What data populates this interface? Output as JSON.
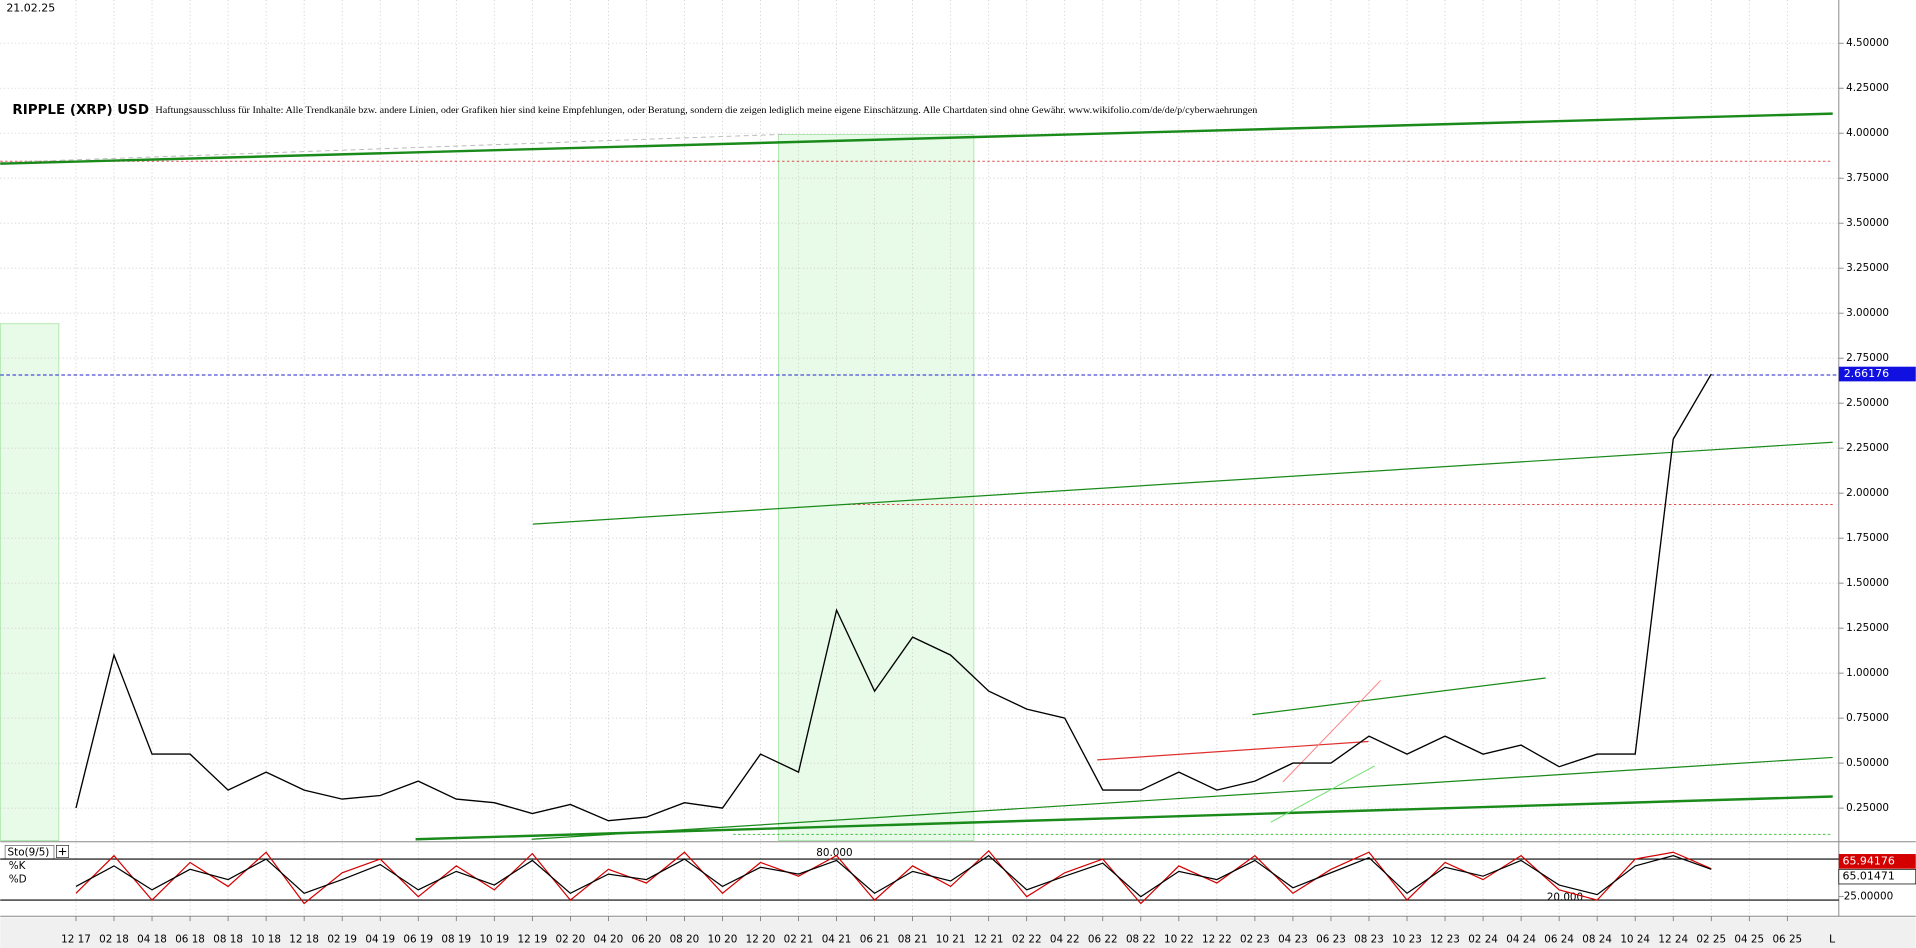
{
  "date": "21.02.25",
  "corner_label": "L",
  "chart_data": [
    {
      "type": "line",
      "title": "RIPPLE (XRP) USD",
      "subtitle": "Haftungsausschluss für Inhalte: Alle Trendkanäle bzw. andere Linien, oder Grafiken hier sind keine Empfehlungen, oder Beratung, sondern die zeigen lediglich meine eigene Einschätzung. Alle Chartdaten sind ohne Gewähr. www.wikifolio.com/de/de/p/cyberwaehrungen",
      "categories": [
        "12 17",
        "02 18",
        "04 18",
        "06 18",
        "08 18",
        "10 18",
        "12 18",
        "02 19",
        "04 19",
        "06 19",
        "08 19",
        "10 19",
        "12 19",
        "02 20",
        "04 20",
        "06 20",
        "08 20",
        "10 20",
        "12 20",
        "02 21",
        "04 21",
        "06 21",
        "08 21",
        "10 21",
        "12 21",
        "02 22",
        "04 22",
        "06 22",
        "08 22",
        "10 22",
        "12 22",
        "02 23",
        "04 23",
        "06 23",
        "08 23",
        "10 23",
        "12 23",
        "02 24",
        "04 24",
        "06 24",
        "08 24",
        "10 24",
        "12 24",
        "02 25",
        "04 25",
        "06 25"
      ],
      "series": [
        {
          "color": "#000000",
          "values": [
            0.25,
            1.1,
            0.55,
            0.55,
            0.35,
            0.45,
            0.35,
            0.3,
            0.32,
            0.4,
            0.3,
            0.28,
            0.22,
            0.27,
            0.18,
            0.2,
            0.28,
            0.25,
            0.55,
            0.45,
            1.35,
            0.9,
            1.2,
            1.1,
            0.9,
            0.8,
            0.75,
            0.35,
            0.35,
            0.45,
            0.35,
            0.4,
            0.5,
            0.5,
            0.65,
            0.55,
            0.65,
            0.55,
            0.6,
            0.48,
            0.55,
            0.55,
            2.3,
            2.66176,
            null,
            null
          ]
        }
      ],
      "ylim": [
        0.07,
        4.74
      ],
      "yticks": [
        {
          "value": 0.25,
          "label": "0.25000"
        },
        {
          "value": 0.5,
          "label": "0.50000"
        },
        {
          "value": 0.75,
          "label": "0.75000"
        },
        {
          "value": 1.0,
          "label": "1.00000"
        },
        {
          "value": 1.25,
          "label": "1.25000"
        },
        {
          "value": 1.5,
          "label": "1.50000"
        },
        {
          "value": 1.75,
          "label": "1.75000"
        },
        {
          "value": 2.0,
          "label": "2.00000"
        },
        {
          "value": 2.25,
          "label": "2.25000"
        },
        {
          "value": 2.5,
          "label": "2.50000"
        },
        {
          "value": 2.75,
          "label": "2.75000"
        },
        {
          "value": 3.0,
          "label": "3.00000"
        },
        {
          "value": 3.25,
          "label": "3.25000"
        },
        {
          "value": 3.5,
          "label": "3.50000"
        },
        {
          "value": 3.75,
          "label": "3.75000"
        },
        {
          "value": 4.0,
          "label": "4.00000"
        },
        {
          "value": 4.25,
          "label": "4.25000"
        },
        {
          "value": 4.5,
          "label": "4.50000"
        }
      ],
      "grid": true
    },
    {
      "type": "stochastic",
      "title": "Sto(9/5)",
      "series": [
        {
          "name": "%K",
          "color": "#d40000",
          "values": [
            30,
            85,
            20,
            75,
            40,
            90,
            15,
            60,
            80,
            25,
            70,
            35,
            88,
            20,
            65,
            45,
            90,
            30,
            75,
            55,
            85,
            20,
            70,
            40,
            92,
            25,
            60,
            80,
            15,
            70,
            45,
            85,
            30,
            65,
            90,
            20,
            75,
            50,
            85,
            35,
            20,
            80,
            90,
            65.94176,
            null,
            null
          ]
        },
        {
          "name": "%D",
          "color": "#000000",
          "values": [
            40,
            70,
            35,
            65,
            50,
            80,
            30,
            50,
            72,
            35,
            62,
            42,
            78,
            30,
            58,
            50,
            80,
            40,
            68,
            58,
            78,
            30,
            62,
            48,
            85,
            35,
            55,
            74,
            25,
            62,
            50,
            78,
            38,
            60,
            82,
            30,
            68,
            55,
            78,
            42,
            28,
            70,
            85,
            65.01471,
            null,
            null
          ]
        }
      ],
      "ylim": [
        0,
        100
      ],
      "yticks": [
        {
          "value": 25,
          "label": "25.00000"
        }
      ],
      "levels": [
        {
          "value": 80,
          "label": "80.000"
        },
        {
          "value": 20,
          "label": "20.000"
        }
      ]
    }
  ]
}
